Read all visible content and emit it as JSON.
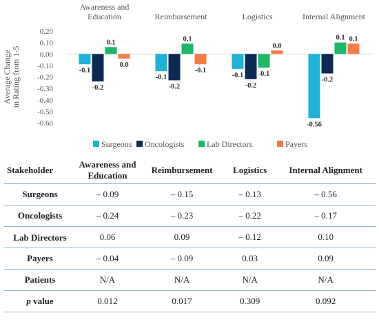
{
  "chart_data": {
    "type": "bar",
    "ylabel": "Average Change in Rating from 1-5",
    "ylim": [
      -0.6,
      0.2
    ],
    "yticks": [
      "0.20",
      "0.10",
      "0.00",
      "-0.10",
      "-0.20",
      "-0.30",
      "-0.40",
      "-0.50",
      "-0.60"
    ],
    "categories": [
      "Awareness and Education",
      "Reimbursement",
      "Logistics",
      "Internal Alignment"
    ],
    "series": [
      {
        "name": "Surgeons",
        "color": "#1fb1d6",
        "values": [
          -0.09,
          -0.15,
          -0.13,
          -0.56
        ],
        "labels": [
          "-0.1",
          "-0.1",
          "-0.1",
          "-0.56"
        ]
      },
      {
        "name": "Oncologists",
        "color": "#0c2b54",
        "values": [
          -0.24,
          -0.23,
          -0.22,
          -0.17
        ],
        "labels": [
          "-0.2",
          "-0.2",
          "-0.2",
          "-0.2"
        ]
      },
      {
        "name": "Lab Directors",
        "color": "#1eb866",
        "values": [
          0.06,
          0.09,
          -0.12,
          0.1
        ],
        "labels": [
          "0.1",
          "0.1",
          "-0.1",
          "0.1"
        ]
      },
      {
        "name": "Payers",
        "color": "#f47c45",
        "values": [
          -0.04,
          -0.09,
          0.03,
          0.09
        ],
        "labels": [
          "0.0",
          "-0.1",
          "0.0",
          "0.1"
        ]
      }
    ],
    "legend_position": "bottom",
    "grid": false
  },
  "table": {
    "header": {
      "stakeholder": "Stakeholder",
      "awareness": "Awareness and Education",
      "reimbursement": "Reimbursement",
      "logistics": "Logistics",
      "internal": "Internal Alignment"
    },
    "rows": [
      {
        "name": "Surgeons",
        "cells": [
          "– 0.09",
          "– 0.15",
          "– 0.13",
          "– 0.56"
        ]
      },
      {
        "name": "Oncologists",
        "cells": [
          "– 0.24",
          "– 0.23",
          "– 0.22",
          "– 0.17"
        ]
      },
      {
        "name": "Lab Directors",
        "cells": [
          "0.06",
          "0.09",
          "– 0.12",
          "0.10"
        ]
      },
      {
        "name": "Payers",
        "cells": [
          "– 0.04",
          "– 0.09",
          "0.03",
          "0.09"
        ]
      },
      {
        "name": "Patients",
        "cells": [
          "N/A",
          "N/A",
          "N/A",
          "N/A"
        ]
      }
    ],
    "pvalue": {
      "p": "p",
      "rest": " value",
      "cells": [
        "0.012",
        "0.017",
        "0.309",
        "0.092"
      ]
    }
  }
}
